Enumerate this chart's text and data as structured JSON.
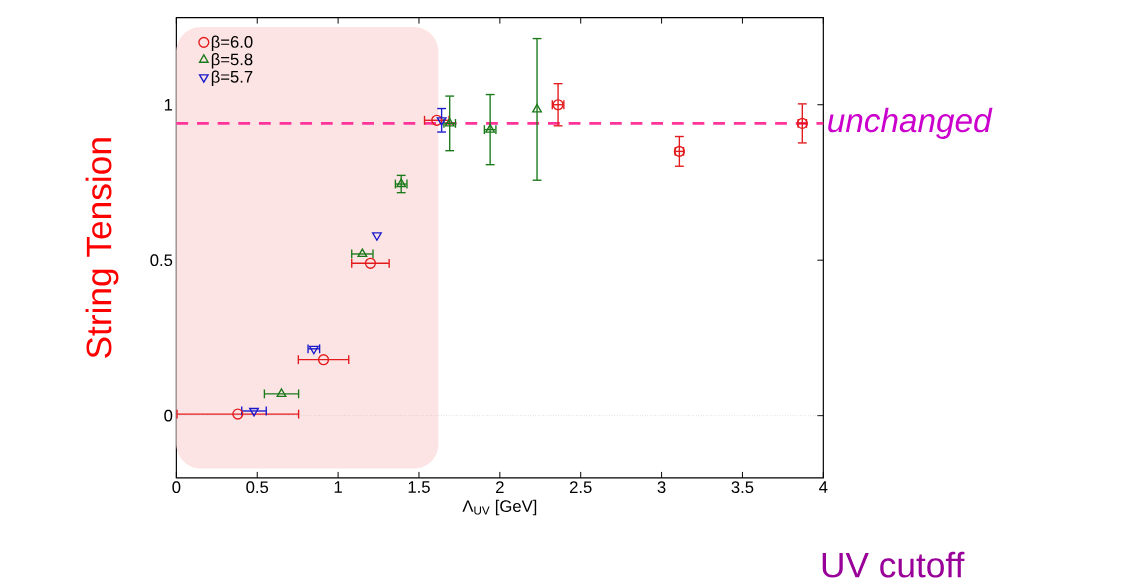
{
  "chart_data": {
    "type": "scatter",
    "xlabel": "Λ$_{UV}$ [GeV]",
    "ylabel": "String Tension",
    "xlim": [
      0,
      4
    ],
    "ylim": [
      -0.2,
      1.28
    ],
    "xticks": [
      0,
      0.5,
      1,
      1.5,
      2,
      2.5,
      3,
      3.5,
      4
    ],
    "yticks": [
      0,
      0.5,
      1
    ],
    "legend": "top left",
    "grid": false,
    "series": [
      {
        "name": "β=6.0",
        "color": "#e31a1c",
        "marker": "circle",
        "x": [
          0.38,
          0.91,
          1.2,
          1.61,
          2.36,
          3.11,
          3.87
        ],
        "values": [
          0.005,
          0.18,
          0.49,
          0.95,
          1.0,
          0.85,
          0.94
        ],
        "xerrors": [
          0.38,
          0.16,
          0.12,
          0.08,
          0.04,
          0.03,
          0.03
        ],
        "errors": [
          null,
          null,
          null,
          null,
          0.07,
          0.05,
          0.065
        ]
      },
      {
        "name": "β=5.8",
        "color": "#1a7a1a",
        "marker": "triangle",
        "x": [
          0.65,
          1.15,
          1.39,
          1.69,
          1.94,
          2.23
        ],
        "values": [
          0.07,
          0.52,
          0.745,
          0.94,
          0.92,
          0.985
        ],
        "xerrors": [
          0.11,
          0.07,
          0.04,
          0.04,
          0.04,
          null
        ],
        "errors": [
          null,
          null,
          0.03,
          0.09,
          0.115,
          0.23
        ]
      },
      {
        "name": "β=5.7",
        "color": "#1a1acc",
        "marker": "triangle down",
        "x": [
          0.48,
          0.85,
          1.24,
          1.64
        ],
        "values": [
          0.015,
          0.215,
          0.58,
          0.95
        ],
        "xerrors": [
          0.08,
          0.04,
          null,
          null
        ],
        "errors": [
          null,
          null,
          null,
          0.04
        ]
      }
    ],
    "ref_lines": [
      {
        "axis": "y",
        "value": 0.94,
        "label": "unchanged",
        "color": "#ff3399",
        "line_style": "dashed"
      },
      {
        "axis": "y",
        "value": 0,
        "color": "#aaaaaa",
        "line_style": "dotted"
      }
    ],
    "bands": [
      {
        "axis": "x",
        "from": 0,
        "to": 1.62,
        "color": "#fde4e4"
      }
    ],
    "annotations": [
      "UV cutoff"
    ]
  }
}
